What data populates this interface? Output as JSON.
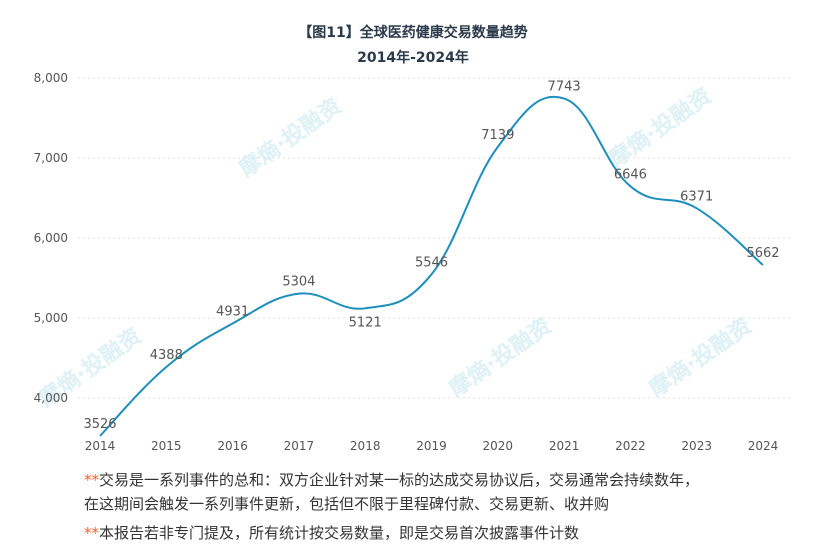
{
  "watermark": "摩熵·投融资",
  "chart_data": {
    "type": "line",
    "title": "【图11】全球医药健康交易数量趋势",
    "subtitle": "2014年-2024年",
    "categories": [
      "2014",
      "2015",
      "2016",
      "2017",
      "2018",
      "2019",
      "2020",
      "2021",
      "2022",
      "2023",
      "2024"
    ],
    "series": [
      {
        "values": [
          3526,
          4388,
          4931,
          5304,
          5121,
          5546,
          7139,
          7743,
          6646,
          6371,
          5662
        ]
      }
    ],
    "yticks": [
      "4,000",
      "5,000",
      "6,000",
      "7,000",
      "8,000"
    ],
    "ylim": [
      3500,
      8000
    ],
    "grid": true,
    "line_color": "#1d8fbd",
    "smooth": true
  },
  "notes": {
    "marker": "**",
    "note1_line1": "交易是一系列事件的总和：双方企业针对某一标的达成交易协议后，交易通常会持续数年，",
    "note1_line2": "在这期间会触发一系列事件更新，包括但不限于里程碑付款、交易更新、收并购",
    "note2": "本报告若非专门提及，所有统计按交易数量，即是交易首次披露事件计数"
  }
}
